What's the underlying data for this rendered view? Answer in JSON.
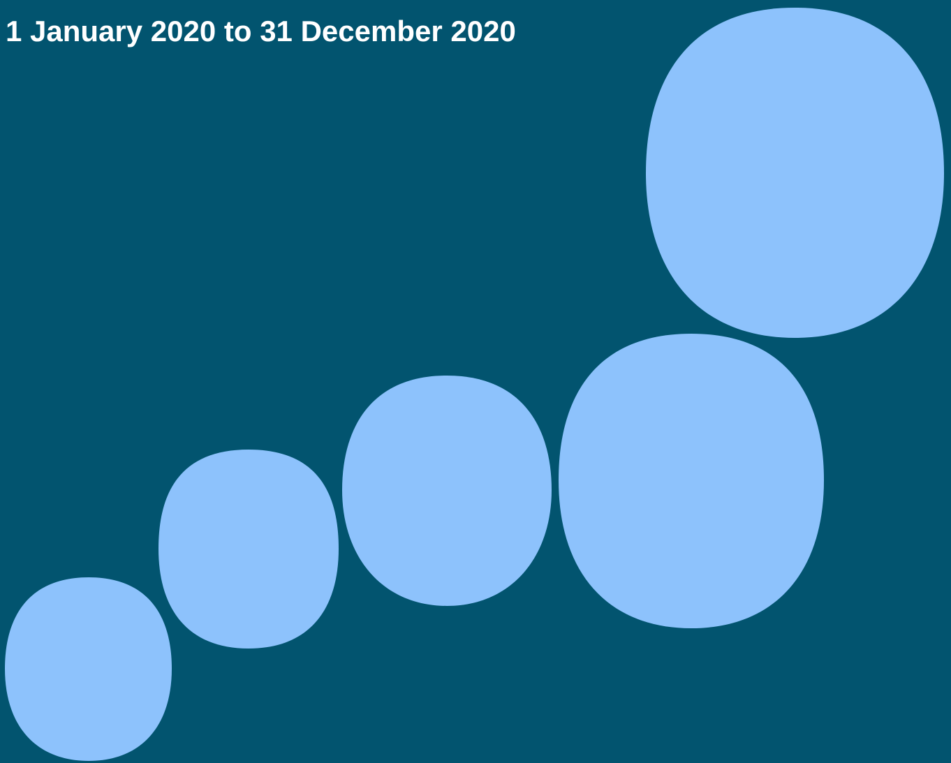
{
  "header": {
    "date_range": "1 January 2020 to 31 December 2020"
  },
  "colors": {
    "background": "#02546f",
    "shape_fill": "#8dc2fc",
    "text": "#ffffff"
  },
  "decoration": {
    "shape_icon": "squircle-icon",
    "shape_count": 5
  }
}
